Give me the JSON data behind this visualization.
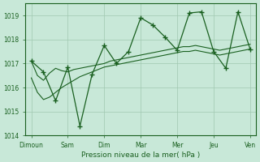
{
  "background_color": "#c8e8d8",
  "grid_color": "#a0c8b0",
  "line_color": "#1a6020",
  "xlabel": "Pression niveau de la mer( hPa )",
  "ylim": [
    1014,
    1019.5
  ],
  "yticks": [
    1014,
    1015,
    1016,
    1017,
    1018,
    1019
  ],
  "x_labels": [
    "Dimoun",
    "Sam",
    "Dim",
    "Mar",
    "Mer",
    "Jeu",
    "Ven"
  ],
  "x_positions": [
    0,
    6,
    12,
    18,
    24,
    30,
    36
  ],
  "series1": [
    1017.1,
    1016.5,
    1016.3,
    1016.6,
    1016.8,
    1016.7,
    1016.65,
    1016.75,
    1016.8,
    1016.85,
    1016.9,
    1016.95,
    1017.0,
    1017.1,
    1017.15,
    1017.2,
    1017.25,
    1017.3,
    1017.35,
    1017.4,
    1017.45,
    1017.5,
    1017.55,
    1017.6,
    1017.65,
    1017.7,
    1017.7,
    1017.75,
    1017.7,
    1017.65,
    1017.6,
    1017.55,
    1017.6,
    1017.65,
    1017.7,
    1017.75,
    1017.8
  ],
  "series2": [
    1016.4,
    1015.8,
    1015.5,
    1015.6,
    1015.8,
    1016.0,
    1016.15,
    1016.3,
    1016.45,
    1016.55,
    1016.65,
    1016.75,
    1016.85,
    1016.9,
    1016.95,
    1017.0,
    1017.05,
    1017.1,
    1017.15,
    1017.2,
    1017.25,
    1017.3,
    1017.35,
    1017.4,
    1017.45,
    1017.5,
    1017.5,
    1017.55,
    1017.5,
    1017.45,
    1017.4,
    1017.35,
    1017.4,
    1017.45,
    1017.5,
    1017.55,
    1017.6
  ],
  "main_series_x": [
    0,
    2,
    4,
    6,
    8,
    10,
    12,
    14,
    16,
    18,
    20,
    22,
    24,
    26,
    28,
    30,
    32,
    34,
    36
  ],
  "main_series_y": [
    1017.1,
    1016.65,
    1015.45,
    1016.85,
    1014.4,
    1016.55,
    1017.75,
    1017.0,
    1017.5,
    1018.9,
    1018.6,
    1018.1,
    1017.55,
    1019.1,
    1019.15,
    1017.5,
    1016.8,
    1019.15,
    1017.6
  ],
  "figsize": [
    3.2,
    2.0
  ],
  "dpi": 100
}
